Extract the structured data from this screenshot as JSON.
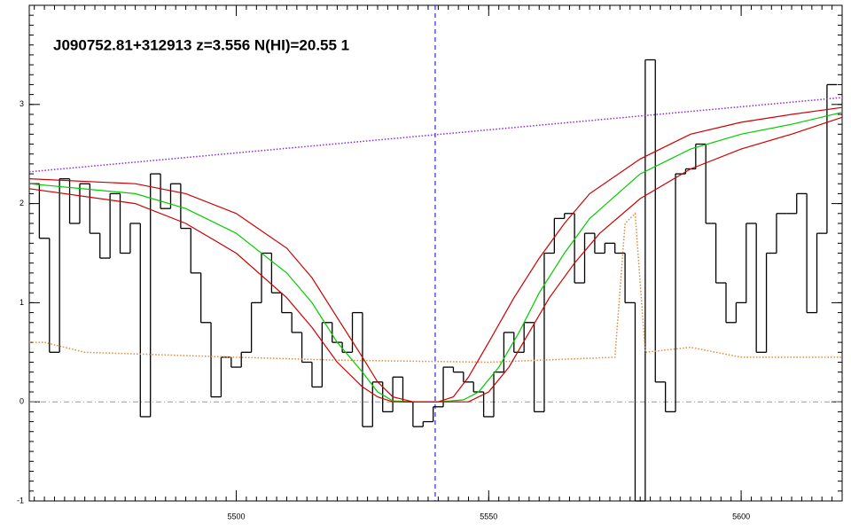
{
  "chart_data": {
    "type": "spectrum",
    "title": "J090752.81+312913 z=3.556 N(HI)=20.55 1",
    "xlim": [
      5459,
      5620
    ],
    "ylim": [
      -1,
      4
    ],
    "xticks": [
      5500,
      5550,
      5600
    ],
    "yticks": [
      -1,
      0,
      1,
      2,
      3
    ],
    "minor_ticks": {
      "x": 25,
      "y": 10
    },
    "vline": {
      "value": 5539.4,
      "color": "#0000cc"
    },
    "hline": {
      "value": 0,
      "color": "#999999"
    },
    "series": [
      {
        "style": "steps",
        "color": "#000000",
        "x": [
          5460,
          5462,
          5464,
          5466,
          5468,
          5470,
          5472,
          5474,
          5476,
          5478,
          5480,
          5482,
          5484,
          5486,
          5488,
          5490,
          5492,
          5494,
          5496,
          5498,
          5500,
          5502,
          5504,
          5506,
          5508,
          5510,
          5512,
          5514,
          5516,
          5518,
          5520,
          5522,
          5524,
          5526,
          5528,
          5530,
          5532,
          5534,
          5536,
          5538,
          5540,
          5542,
          5544,
          5546,
          5548,
          5550,
          5552,
          5554,
          5556,
          5558,
          5560,
          5562,
          5564,
          5566,
          5568,
          5570,
          5572,
          5574,
          5576,
          5578,
          5580,
          5582,
          5584,
          5586,
          5588,
          5590,
          5592,
          5594,
          5596,
          5598,
          5600,
          5602,
          5604,
          5606,
          5608,
          5610,
          5612,
          5614,
          5616,
          5618
        ],
        "values": [
          2.2,
          1.65,
          0.5,
          2.25,
          1.8,
          2.2,
          1.7,
          1.45,
          2.1,
          1.5,
          1.8,
          -0.15,
          2.3,
          1.95,
          2.2,
          1.75,
          1.3,
          0.8,
          0.05,
          0.45,
          0.35,
          0.5,
          1.0,
          1.5,
          1.1,
          0.9,
          0.7,
          0.4,
          0.15,
          0.8,
          0.6,
          0.5,
          0.9,
          -0.25,
          0.2,
          -0.1,
          0.25,
          0,
          -0.25,
          -0.2,
          -0.05,
          0.35,
          0.3,
          0.2,
          0.1,
          -0.15,
          0.3,
          0.7,
          0.5,
          0.8,
          -0.1,
          1.5,
          1.85,
          1.9,
          1.2,
          1.7,
          1.5,
          1.6,
          1.5,
          1.0,
          -1.0,
          3.45,
          0.2,
          -0.1,
          2.3,
          2.35,
          2.6,
          1.8,
          1.2,
          0.8,
          1.0,
          1.8,
          0.5,
          1.5,
          1.9,
          1.9,
          2.1,
          0.9,
          1.7,
          3.2
        ]
      },
      {
        "style": "dotted",
        "color": "#e08a3c",
        "x": [
          5459,
          5462,
          5470,
          5500,
          5520,
          5550,
          5575,
          5577,
          5579,
          5581,
          5590,
          5600,
          5620
        ],
        "values": [
          0.6,
          0.6,
          0.5,
          0.45,
          0.42,
          0.4,
          0.45,
          1.8,
          1.9,
          0.5,
          0.55,
          0.45,
          0.45
        ]
      },
      {
        "style": "dotted",
        "color": "#8a2be2",
        "x": [
          5459,
          5620
        ],
        "values": [
          2.32,
          3.07
        ]
      },
      {
        "style": "solid",
        "color": "#00cc00",
        "x": [
          5459,
          5480,
          5490,
          5500,
          5510,
          5515,
          5520,
          5525,
          5528,
          5531,
          5535,
          5540,
          5545,
          5548,
          5552,
          5556,
          5560,
          5565,
          5570,
          5580,
          5590,
          5600,
          5610,
          5620
        ],
        "values": [
          2.2,
          2.1,
          1.95,
          1.7,
          1.3,
          1.0,
          0.6,
          0.3,
          0.1,
          0.01,
          0,
          0,
          0.02,
          0.1,
          0.35,
          0.7,
          1.1,
          1.5,
          1.85,
          2.3,
          2.55,
          2.7,
          2.8,
          2.92
        ]
      },
      {
        "style": "solid",
        "color": "#cc0000",
        "x": [
          5459,
          5480,
          5490,
          5500,
          5510,
          5515,
          5520,
          5525,
          5528,
          5531,
          5535,
          5540,
          5543,
          5546,
          5550,
          5555,
          5560,
          5565,
          5570,
          5580,
          5590,
          5600,
          5610,
          5620
        ],
        "values": [
          2.25,
          2.2,
          2.1,
          1.9,
          1.55,
          1.25,
          0.85,
          0.45,
          0.2,
          0.05,
          0,
          0,
          0.05,
          0.25,
          0.6,
          1.05,
          1.45,
          1.8,
          2.1,
          2.45,
          2.7,
          2.82,
          2.9,
          2.97
        ]
      },
      {
        "style": "solid",
        "color": "#cc0000",
        "x": [
          5459,
          5480,
          5490,
          5500,
          5510,
          5515,
          5520,
          5525,
          5528,
          5531,
          5540,
          5546,
          5550,
          5554,
          5558,
          5562,
          5567,
          5572,
          5580,
          5590,
          5600,
          5610,
          5620
        ],
        "values": [
          2.15,
          2.0,
          1.8,
          1.5,
          1.05,
          0.75,
          0.4,
          0.15,
          0.05,
          0,
          0,
          0,
          0.1,
          0.35,
          0.7,
          1.05,
          1.4,
          1.7,
          2.05,
          2.35,
          2.55,
          2.7,
          2.87
        ]
      }
    ]
  }
}
